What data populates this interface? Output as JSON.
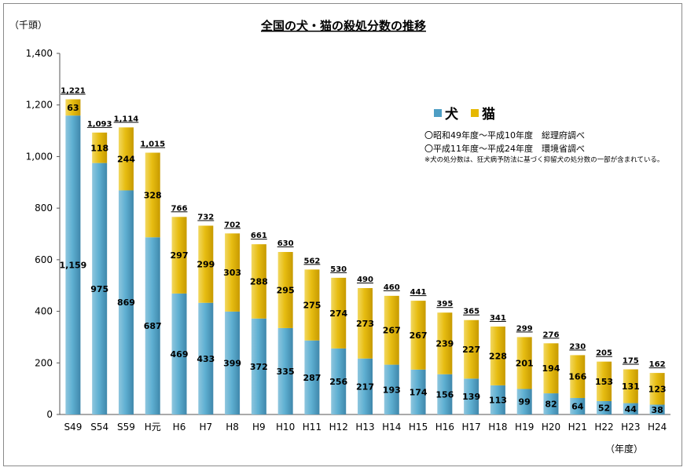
{
  "chart_data": {
    "type": "bar",
    "stacked": true,
    "title": "全国の犬・猫の殺処分数の推移",
    "yunit": "（千頭）",
    "xunit": "（年度）",
    "ylim": [
      0,
      1400
    ],
    "yticks": [
      0,
      200,
      400,
      600,
      800,
      1000,
      1200,
      1400
    ],
    "ytick_labels": [
      "0",
      "200",
      "400",
      "600",
      "800",
      "1,000",
      "1,200",
      "1,400"
    ],
    "categories": [
      "S49",
      "S54",
      "S59",
      "H元",
      "H6",
      "H7",
      "H8",
      "H9",
      "H10",
      "H11",
      "H12",
      "H13",
      "H14",
      "H15",
      "H16",
      "H17",
      "H18",
      "H19",
      "H20",
      "H21",
      "H22",
      "H23",
      "H24"
    ],
    "series": [
      {
        "name": "犬",
        "color": "#4e9ec4",
        "values": [
          1159,
          975,
          869,
          687,
          469,
          433,
          399,
          372,
          335,
          287,
          256,
          217,
          193,
          174,
          156,
          139,
          113,
          99,
          82,
          64,
          52,
          44,
          38
        ]
      },
      {
        "name": "猫",
        "color": "#e6b800",
        "values": [
          63,
          118,
          244,
          328,
          297,
          299,
          303,
          288,
          295,
          275,
          274,
          273,
          267,
          267,
          239,
          227,
          228,
          201,
          194,
          166,
          153,
          131,
          123
        ]
      }
    ],
    "totals": [
      1221,
      1093,
      1114,
      1015,
      766,
      732,
      702,
      661,
      630,
      562,
      530,
      490,
      460,
      441,
      395,
      365,
      341,
      299,
      276,
      230,
      205,
      175,
      162
    ],
    "total_labels": [
      "1,221",
      "1,093",
      "1,114",
      "1,015",
      "766",
      "732",
      "702",
      "661",
      "630",
      "562",
      "530",
      "490",
      "460",
      "441",
      "395",
      "365",
      "341",
      "299",
      "276",
      "230",
      "205",
      "175",
      "162"
    ],
    "legend_position": "top-right",
    "grid": false
  },
  "notes": [
    "〇昭和49年度～平成10年度　総理府調べ",
    "〇平成11年度～平成24年度　環境省調べ",
    "※犬の処分数は、狂犬病予防法に基づく抑留犬の処分数の一部が含まれている。"
  ]
}
